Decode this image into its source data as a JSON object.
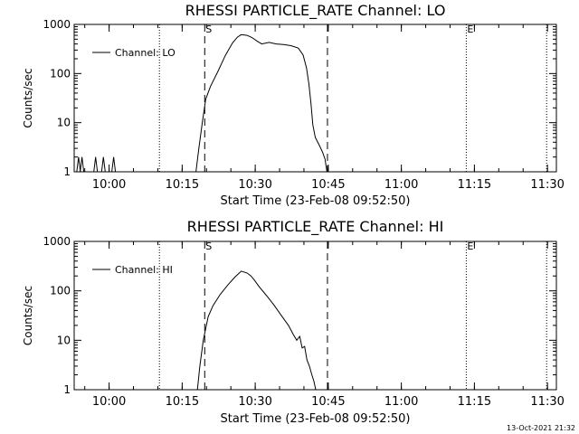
{
  "footer_timestamp": "13-Oct-2021 21:32",
  "chart_data": [
    {
      "type": "line",
      "title": "RHESSI PARTICLE_RATE Channel: LO",
      "xlabel": "Start Time (23-Feb-08 09:52:50)",
      "ylabel": "Counts/sec",
      "x_unit": "minutes after 09:52:50 UT",
      "xlim": [
        0,
        99
      ],
      "ylim": [
        1,
        1000
      ],
      "yscale": "log",
      "x_ticks": [
        {
          "t": 7.17,
          "label": "10:00"
        },
        {
          "t": 22.17,
          "label": "10:15"
        },
        {
          "t": 37.17,
          "label": "10:30"
        },
        {
          "t": 52.17,
          "label": "10:45"
        },
        {
          "t": 67.17,
          "label": "11:00"
        },
        {
          "t": 82.17,
          "label": "11:15"
        },
        {
          "t": 97.17,
          "label": "11:30"
        }
      ],
      "y_ticks": [
        {
          "v": 1,
          "label": "1"
        },
        {
          "v": 10,
          "label": "10"
        },
        {
          "v": 100,
          "label": "100"
        },
        {
          "v": 1000,
          "label": "1000"
        }
      ],
      "dotted_lines": [
        17.5,
        80.5,
        97.0
      ],
      "dashed_lines": [
        26.8,
        52.0
      ],
      "markers": [
        {
          "t": 26.8,
          "label": "S"
        },
        {
          "t": 80.5,
          "label": "E"
        }
      ],
      "legend": {
        "label": "Channel: LO",
        "position": "top-left"
      },
      "series": [
        {
          "name": "Channel: LO",
          "spikes": [
            0.9,
            1.6,
            4.4,
            6.0,
            8.1
          ],
          "spike_value": 2.0,
          "x": [
            25.0,
            25.6,
            26.3,
            27.0,
            28.0,
            29.5,
            31.0,
            32.5,
            33.5,
            34.3,
            35.5,
            36.5,
            37.5,
            38.5,
            40.0,
            41.5,
            43.0,
            44.5,
            46.0,
            47.0,
            47.7,
            48.2,
            48.6,
            49.0,
            49.5,
            50.3,
            51.0,
            51.5,
            51.9
          ],
          "values": [
            1,
            3,
            10,
            30,
            55,
            110,
            230,
            420,
            550,
            620,
            600,
            540,
            460,
            400,
            430,
            400,
            390,
            370,
            330,
            240,
            130,
            60,
            25,
            9,
            5,
            3.5,
            2.5,
            1.8,
            1
          ]
        }
      ]
    },
    {
      "type": "line",
      "title": "RHESSI PARTICLE_RATE Channel: HI",
      "xlabel": "Start Time (23-Feb-08 09:52:50)",
      "ylabel": "Counts/sec",
      "x_unit": "minutes after 09:52:50 UT",
      "xlim": [
        0,
        99
      ],
      "ylim": [
        1,
        1000
      ],
      "yscale": "log",
      "x_ticks": [
        {
          "t": 7.17,
          "label": "10:00"
        },
        {
          "t": 22.17,
          "label": "10:15"
        },
        {
          "t": 37.17,
          "label": "10:30"
        },
        {
          "t": 52.17,
          "label": "10:45"
        },
        {
          "t": 67.17,
          "label": "11:00"
        },
        {
          "t": 82.17,
          "label": "11:15"
        },
        {
          "t": 97.17,
          "label": "11:30"
        }
      ],
      "y_ticks": [
        {
          "v": 1,
          "label": "1"
        },
        {
          "v": 10,
          "label": "10"
        },
        {
          "v": 100,
          "label": "100"
        },
        {
          "v": 1000,
          "label": "1000"
        }
      ],
      "dotted_lines": [
        17.5,
        80.5,
        97.0
      ],
      "dashed_lines": [
        26.8,
        52.0
      ],
      "markers": [
        {
          "t": 26.8,
          "label": "S"
        },
        {
          "t": 80.5,
          "label": "E"
        }
      ],
      "legend": {
        "label": "Channel: HI",
        "position": "top-left"
      },
      "series": [
        {
          "name": "Channel: HI",
          "spikes": [],
          "spike_value": 1,
          "x": [
            25.3,
            25.8,
            26.5,
            27.5,
            28.5,
            30.0,
            31.5,
            33.0,
            34.3,
            35.5,
            36.3,
            37.0,
            38.0,
            39.5,
            41.0,
            42.5,
            44.0,
            45.0,
            45.7,
            46.3,
            46.8,
            47.3,
            47.8,
            48.3,
            48.8,
            49.2,
            49.6
          ],
          "values": [
            1,
            3,
            10,
            30,
            50,
            85,
            130,
            190,
            250,
            230,
            200,
            165,
            120,
            80,
            52,
            32,
            20,
            13,
            10,
            12,
            7,
            7.5,
            4,
            3,
            2,
            1.5,
            1
          ]
        }
      ]
    }
  ]
}
